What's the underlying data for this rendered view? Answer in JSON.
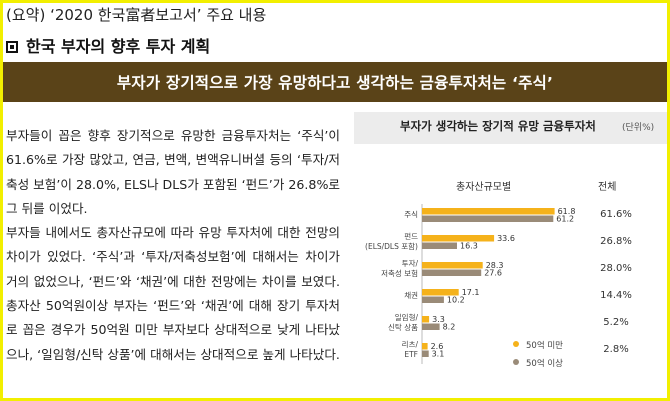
{
  "header": {
    "summary_line": "(요약) ‘2020 한국富者보고서’ 주요 내용",
    "section_title": "한국 부자의 향후 투자 계획"
  },
  "banner": {
    "text": "부자가 장기적으로 가장 유망하다고 생각하는 금융투자처는 ‘주식’"
  },
  "body": {
    "paragraph_1": "부자들이 꼽은 향후 장기적으로 유망한 금융투자처는 ‘주식’이 61.6%로 가장 많았고, 연금, 변액, 변액유니버셜 등의 ‘투자/저축성 보험’이 28.0%, ELS나 DLS가 포함된 ‘펀드’가 26.8%로 그 뒤를 이었다.",
    "paragraph_2": "부자들 내에서도 총자산규모에 따라 유망 투자처에 대한 전망의 차이가 있었다. ‘주식’과 ‘투자/저축성보험’에 대해서는 차이가 거의 없었으나, ‘펀드’와 ‘채권’에 대한 전망에는 차이를 보였다. 총자산 50억원이상 부자는 ‘펀드’와 ‘채권’에 대해 장기 투자처로 꼽은 경우가 50억원 미만 부자보다 상대적으로 낮게 나타났으나, ‘일임형/신탁 상품’에 대해서는 상대적으로 높게 나타났다."
  },
  "chart_data": {
    "type": "bar",
    "orientation": "horizontal",
    "title": "부자가 생각하는 장기적 유망 금융투자처",
    "unit": "(단위%)",
    "subtitle": "총자산규모별",
    "total_header": "전체",
    "categories": [
      [
        "주식"
      ],
      [
        "펀드",
        "(ELS/DLS 포함)"
      ],
      [
        "투자/",
        "저축성 보험"
      ],
      [
        "채권"
      ],
      [
        "일임형/",
        "신탁 상품"
      ],
      [
        "리츠/",
        "ETF"
      ]
    ],
    "series": [
      {
        "name": "50억 미만",
        "color": "#f5b21b",
        "values": [
          61.8,
          33.6,
          28.3,
          17.1,
          3.3,
          2.6
        ]
      },
      {
        "name": "50억 이상",
        "color": "#9a8b78",
        "values": [
          61.2,
          16.3,
          27.6,
          10.2,
          8.2,
          3.1
        ]
      }
    ],
    "totals": [
      "61.6%",
      "26.8%",
      "28.0%",
      "14.4%",
      "5.2%",
      "2.8%"
    ],
    "xlim": [
      0,
      62
    ]
  }
}
